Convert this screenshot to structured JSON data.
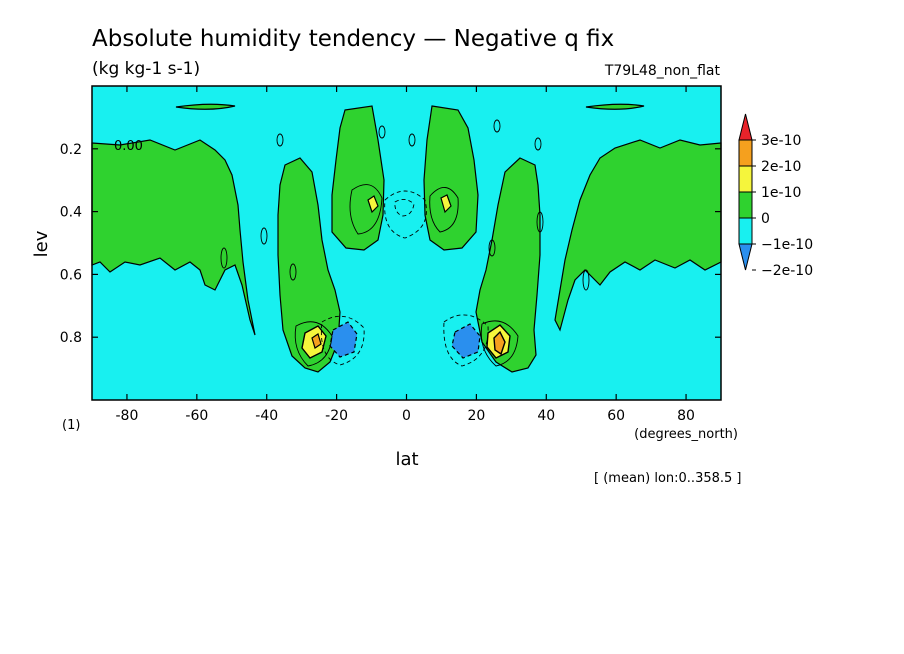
{
  "chart_data": {
    "type": "contour",
    "title": "Absolute humidity tendency — Negative q fix",
    "subtitle": "(kg kg-1 s-1)",
    "run_label": "T79L48_non_flat",
    "xlabel": "lat",
    "x_units": "(degrees_north)",
    "ylabel": "lev",
    "y_units": "(1)",
    "annotation": "[ (mean) lon:0..358.5 ]",
    "xlim": [
      -90,
      90
    ],
    "ylim": [
      0,
      1
    ],
    "y_inverted": true,
    "x_ticks": [
      -80,
      -60,
      -40,
      -20,
      0,
      20,
      40,
      60,
      80
    ],
    "y_ticks": [
      0.2,
      0.4,
      0.6,
      0.8
    ],
    "contour_label": "0.00",
    "colorbar": {
      "labels": [
        "3e-10",
        "2e-10",
        "1e-10",
        "0",
        "−1e-10",
        "−2e-10"
      ],
      "colors": [
        "#e8232a",
        "#f5a01e",
        "#f5f53c",
        "#2fd22f",
        "#18f0f0",
        "#2a8fee"
      ]
    },
    "colors": {
      "background": "#18f0f0",
      "positive_small": "#2fd22f",
      "positive_medium": "#f5f53c",
      "positive_high": "#f5a01e",
      "negative_medium": "#2a8fee"
    }
  }
}
